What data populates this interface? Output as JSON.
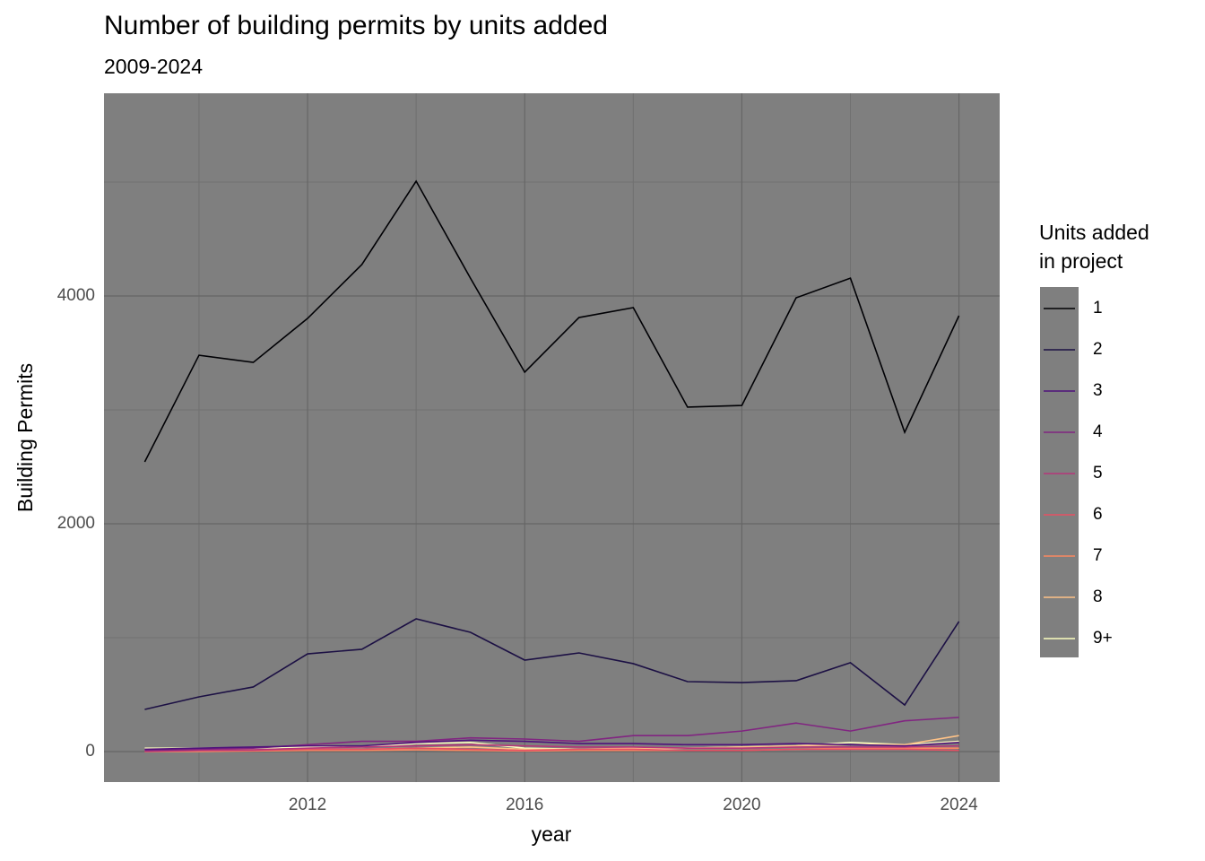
{
  "chart_data": {
    "type": "line",
    "title": "Number of building permits by units added",
    "subtitle": "2009-2024",
    "x_label": "year",
    "y_label": "Building Permits",
    "legend_title": [
      "Units added",
      "in project"
    ],
    "legend_position": "right",
    "grid": true,
    "x": [
      2009,
      2010,
      2011,
      2012,
      2013,
      2014,
      2015,
      2016,
      2017,
      2018,
      2019,
      2020,
      2021,
      2022,
      2023,
      2024
    ],
    "xlim": [
      2008.25,
      2024.75
    ],
    "xticks": [
      2012,
      2016,
      2020,
      2024
    ],
    "x_minor_grid": [
      2010,
      2014,
      2018,
      2022
    ],
    "ylim": [
      -268,
      5780
    ],
    "yticks": [
      0,
      2000,
      4000
    ],
    "y_minor_grid": [
      1000,
      3000,
      5000
    ],
    "series": [
      {
        "name": "1",
        "color": "#000004",
        "values": [
          2543,
          3480,
          3417,
          3803,
          4276,
          5008,
          4157,
          3331,
          3811,
          3898,
          3024,
          3039,
          3984,
          4157,
          2803,
          3827
        ]
      },
      {
        "name": "2",
        "color": "#1c1044",
        "values": [
          370,
          480,
          567,
          858,
          898,
          1165,
          1047,
          803,
          866,
          772,
          614,
          606,
          622,
          780,
          409,
          1142
        ]
      },
      {
        "name": "3",
        "color": "#4f127b",
        "values": [
          20,
          30,
          40,
          50,
          50,
          80,
          100,
          90,
          70,
          70,
          60,
          60,
          70,
          60,
          50,
          80
        ]
      },
      {
        "name": "4",
        "color": "#812581",
        "values": [
          10,
          20,
          30,
          60,
          90,
          90,
          120,
          110,
          90,
          140,
          140,
          180,
          250,
          180,
          270,
          300
        ]
      },
      {
        "name": "5",
        "color": "#b5367a",
        "values": [
          5,
          10,
          15,
          30,
          40,
          50,
          60,
          50,
          40,
          40,
          30,
          30,
          40,
          40,
          40,
          50
        ]
      },
      {
        "name": "6",
        "color": "#e55064",
        "values": [
          0,
          10,
          10,
          20,
          20,
          30,
          20,
          10,
          20,
          20,
          10,
          10,
          20,
          20,
          20,
          10
        ]
      },
      {
        "name": "7",
        "color": "#fb8861",
        "values": [
          0,
          0,
          5,
          10,
          10,
          15,
          10,
          5,
          10,
          10,
          10,
          10,
          20,
          30,
          30,
          30
        ]
      },
      {
        "name": "8",
        "color": "#fec287",
        "values": [
          10,
          10,
          15,
          20,
          20,
          30,
          40,
          20,
          20,
          30,
          30,
          40,
          50,
          60,
          60,
          140
        ]
      },
      {
        "name": "9+",
        "color": "#fcfdbf",
        "values": [
          30,
          30,
          30,
          40,
          40,
          70,
          80,
          30,
          20,
          20,
          30,
          40,
          50,
          80,
          60,
          90
        ]
      }
    ]
  }
}
